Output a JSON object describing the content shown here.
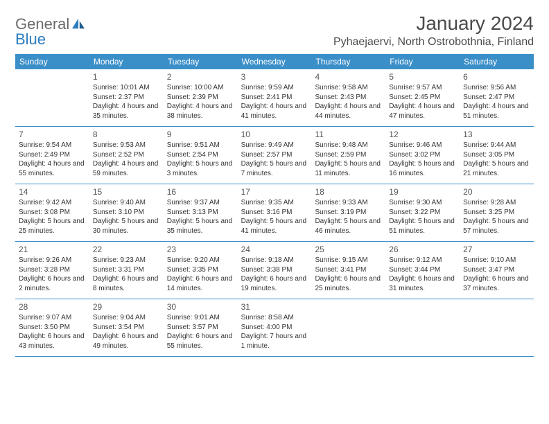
{
  "logo": {
    "text_general": "General",
    "text_blue": "Blue"
  },
  "title": "January 2024",
  "location": "Pyhaejaervi, North Ostrobothnia, Finland",
  "colors": {
    "header_bg": "#3b8fc9",
    "header_text": "#ffffff",
    "border": "#3b8fc9",
    "text": "#333333",
    "title_text": "#4a4a4a",
    "logo_gray": "#6b6b6b",
    "logo_blue": "#2b7bbf",
    "background": "#ffffff"
  },
  "day_names": [
    "Sunday",
    "Monday",
    "Tuesday",
    "Wednesday",
    "Thursday",
    "Friday",
    "Saturday"
  ],
  "weeks": [
    [
      {
        "num": "",
        "sunrise": "",
        "sunset": "",
        "daylight": ""
      },
      {
        "num": "1",
        "sunrise": "Sunrise: 10:01 AM",
        "sunset": "Sunset: 2:37 PM",
        "daylight": "Daylight: 4 hours and 35 minutes."
      },
      {
        "num": "2",
        "sunrise": "Sunrise: 10:00 AM",
        "sunset": "Sunset: 2:39 PM",
        "daylight": "Daylight: 4 hours and 38 minutes."
      },
      {
        "num": "3",
        "sunrise": "Sunrise: 9:59 AM",
        "sunset": "Sunset: 2:41 PM",
        "daylight": "Daylight: 4 hours and 41 minutes."
      },
      {
        "num": "4",
        "sunrise": "Sunrise: 9:58 AM",
        "sunset": "Sunset: 2:43 PM",
        "daylight": "Daylight: 4 hours and 44 minutes."
      },
      {
        "num": "5",
        "sunrise": "Sunrise: 9:57 AM",
        "sunset": "Sunset: 2:45 PM",
        "daylight": "Daylight: 4 hours and 47 minutes."
      },
      {
        "num": "6",
        "sunrise": "Sunrise: 9:56 AM",
        "sunset": "Sunset: 2:47 PM",
        "daylight": "Daylight: 4 hours and 51 minutes."
      }
    ],
    [
      {
        "num": "7",
        "sunrise": "Sunrise: 9:54 AM",
        "sunset": "Sunset: 2:49 PM",
        "daylight": "Daylight: 4 hours and 55 minutes."
      },
      {
        "num": "8",
        "sunrise": "Sunrise: 9:53 AM",
        "sunset": "Sunset: 2:52 PM",
        "daylight": "Daylight: 4 hours and 59 minutes."
      },
      {
        "num": "9",
        "sunrise": "Sunrise: 9:51 AM",
        "sunset": "Sunset: 2:54 PM",
        "daylight": "Daylight: 5 hours and 3 minutes."
      },
      {
        "num": "10",
        "sunrise": "Sunrise: 9:49 AM",
        "sunset": "Sunset: 2:57 PM",
        "daylight": "Daylight: 5 hours and 7 minutes."
      },
      {
        "num": "11",
        "sunrise": "Sunrise: 9:48 AM",
        "sunset": "Sunset: 2:59 PM",
        "daylight": "Daylight: 5 hours and 11 minutes."
      },
      {
        "num": "12",
        "sunrise": "Sunrise: 9:46 AM",
        "sunset": "Sunset: 3:02 PM",
        "daylight": "Daylight: 5 hours and 16 minutes."
      },
      {
        "num": "13",
        "sunrise": "Sunrise: 9:44 AM",
        "sunset": "Sunset: 3:05 PM",
        "daylight": "Daylight: 5 hours and 21 minutes."
      }
    ],
    [
      {
        "num": "14",
        "sunrise": "Sunrise: 9:42 AM",
        "sunset": "Sunset: 3:08 PM",
        "daylight": "Daylight: 5 hours and 25 minutes."
      },
      {
        "num": "15",
        "sunrise": "Sunrise: 9:40 AM",
        "sunset": "Sunset: 3:10 PM",
        "daylight": "Daylight: 5 hours and 30 minutes."
      },
      {
        "num": "16",
        "sunrise": "Sunrise: 9:37 AM",
        "sunset": "Sunset: 3:13 PM",
        "daylight": "Daylight: 5 hours and 35 minutes."
      },
      {
        "num": "17",
        "sunrise": "Sunrise: 9:35 AM",
        "sunset": "Sunset: 3:16 PM",
        "daylight": "Daylight: 5 hours and 41 minutes."
      },
      {
        "num": "18",
        "sunrise": "Sunrise: 9:33 AM",
        "sunset": "Sunset: 3:19 PM",
        "daylight": "Daylight: 5 hours and 46 minutes."
      },
      {
        "num": "19",
        "sunrise": "Sunrise: 9:30 AM",
        "sunset": "Sunset: 3:22 PM",
        "daylight": "Daylight: 5 hours and 51 minutes."
      },
      {
        "num": "20",
        "sunrise": "Sunrise: 9:28 AM",
        "sunset": "Sunset: 3:25 PM",
        "daylight": "Daylight: 5 hours and 57 minutes."
      }
    ],
    [
      {
        "num": "21",
        "sunrise": "Sunrise: 9:26 AM",
        "sunset": "Sunset: 3:28 PM",
        "daylight": "Daylight: 6 hours and 2 minutes."
      },
      {
        "num": "22",
        "sunrise": "Sunrise: 9:23 AM",
        "sunset": "Sunset: 3:31 PM",
        "daylight": "Daylight: 6 hours and 8 minutes."
      },
      {
        "num": "23",
        "sunrise": "Sunrise: 9:20 AM",
        "sunset": "Sunset: 3:35 PM",
        "daylight": "Daylight: 6 hours and 14 minutes."
      },
      {
        "num": "24",
        "sunrise": "Sunrise: 9:18 AM",
        "sunset": "Sunset: 3:38 PM",
        "daylight": "Daylight: 6 hours and 19 minutes."
      },
      {
        "num": "25",
        "sunrise": "Sunrise: 9:15 AM",
        "sunset": "Sunset: 3:41 PM",
        "daylight": "Daylight: 6 hours and 25 minutes."
      },
      {
        "num": "26",
        "sunrise": "Sunrise: 9:12 AM",
        "sunset": "Sunset: 3:44 PM",
        "daylight": "Daylight: 6 hours and 31 minutes."
      },
      {
        "num": "27",
        "sunrise": "Sunrise: 9:10 AM",
        "sunset": "Sunset: 3:47 PM",
        "daylight": "Daylight: 6 hours and 37 minutes."
      }
    ],
    [
      {
        "num": "28",
        "sunrise": "Sunrise: 9:07 AM",
        "sunset": "Sunset: 3:50 PM",
        "daylight": "Daylight: 6 hours and 43 minutes."
      },
      {
        "num": "29",
        "sunrise": "Sunrise: 9:04 AM",
        "sunset": "Sunset: 3:54 PM",
        "daylight": "Daylight: 6 hours and 49 minutes."
      },
      {
        "num": "30",
        "sunrise": "Sunrise: 9:01 AM",
        "sunset": "Sunset: 3:57 PM",
        "daylight": "Daylight: 6 hours and 55 minutes."
      },
      {
        "num": "31",
        "sunrise": "Sunrise: 8:58 AM",
        "sunset": "Sunset: 4:00 PM",
        "daylight": "Daylight: 7 hours and 1 minute."
      },
      {
        "num": "",
        "sunrise": "",
        "sunset": "",
        "daylight": ""
      },
      {
        "num": "",
        "sunrise": "",
        "sunset": "",
        "daylight": ""
      },
      {
        "num": "",
        "sunrise": "",
        "sunset": "",
        "daylight": ""
      }
    ]
  ]
}
